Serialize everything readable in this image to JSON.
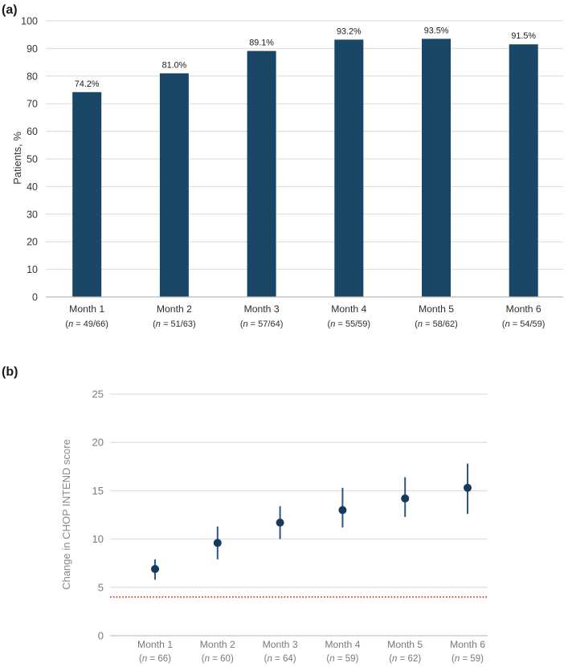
{
  "figure": {
    "background": "#ffffff"
  },
  "chart_data": [
    {
      "type": "bar",
      "panel_label": "(a)",
      "title": "",
      "xlabel": "",
      "ylabel": "Patients, %",
      "ylim": [
        0,
        100
      ],
      "ytick_step": 10,
      "yticks": [
        "0",
        "10",
        "20",
        "30",
        "40",
        "50",
        "60",
        "70",
        "80",
        "90",
        "100"
      ],
      "grid": true,
      "legend_position": "none",
      "categories": [
        "Month 1",
        "Month 2",
        "Month 3",
        "Month 4",
        "Month 5",
        "Month 6"
      ],
      "n_labels": [
        "(n = 49/66)",
        "(n = 51/63)",
        "(n = 57/64)",
        "(n = 55/59)",
        "(n = 58/62)",
        "(n = 54/59)"
      ],
      "values": [
        74.2,
        81.0,
        89.1,
        93.2,
        93.5,
        91.5
      ],
      "value_labels": [
        "74.2%",
        "81.0%",
        "89.1%",
        "93.2%",
        "93.5%",
        "91.5%"
      ],
      "bar_color": "#1a4768",
      "gridline_color": "#d9d9d9",
      "axis_line_color": "#b9b9b9",
      "text_color": "#2e2e2e"
    },
    {
      "type": "scatter",
      "panel_label": "(b)",
      "title": "",
      "xlabel": "",
      "ylabel": "Change in CHOP INTEND score",
      "ylim": [
        0,
        25
      ],
      "ytick_step": 5,
      "yticks": [
        "0",
        "5",
        "10",
        "15",
        "20",
        "25"
      ],
      "grid": true,
      "legend_position": "none",
      "categories": [
        "Month 1",
        "Month 2",
        "Month 3",
        "Month 4",
        "Month 5",
        "Month 6"
      ],
      "n_labels": [
        "(n = 66)",
        "(n = 60)",
        "(n = 64)",
        "(n = 59)",
        "(n = 62)",
        "(n = 59)"
      ],
      "values": [
        6.9,
        9.6,
        11.7,
        13.0,
        14.2,
        15.3
      ],
      "error_low": [
        5.8,
        7.9,
        10.0,
        11.2,
        12.3,
        12.6
      ],
      "error_high": [
        7.9,
        11.3,
        13.4,
        15.3,
        16.4,
        17.8
      ],
      "reference_line": {
        "y": 4,
        "color": "#cc2a2a",
        "style": "dotted"
      },
      "marker_color": "#143a60",
      "error_bar_color": "#2e5780",
      "gridline_color": "#d9d9d9",
      "axis_line_color": "#c4c4c4",
      "text_color": "#7a7a7a"
    }
  ]
}
